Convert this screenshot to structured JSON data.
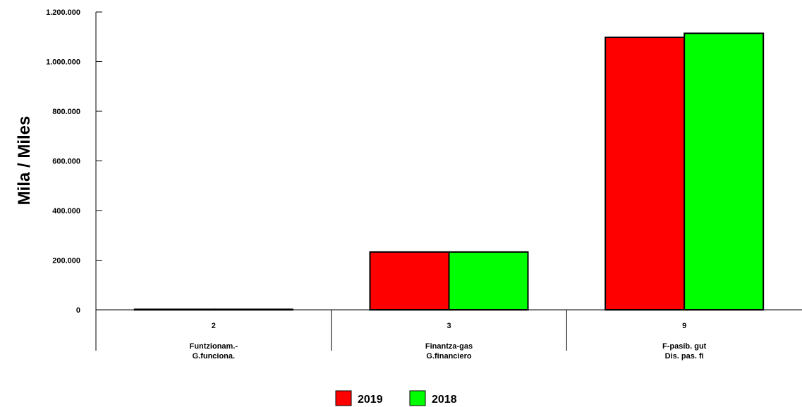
{
  "chart_data": {
    "type": "bar",
    "title": "",
    "ylabel": "Mila / Miles",
    "xlabel": "",
    "ylim": [
      0,
      1200000
    ],
    "yticks": [
      {
        "value": 0,
        "label": "0"
      },
      {
        "value": 200000,
        "label": "200.000"
      },
      {
        "value": 400000,
        "label": "400.000"
      },
      {
        "value": 600000,
        "label": "600.000"
      },
      {
        "value": 800000,
        "label": "800.000"
      },
      {
        "value": 1000000,
        "label": "1.000.000"
      },
      {
        "value": 1200000,
        "label": "1.200.000"
      }
    ],
    "categories": [
      {
        "code": "2",
        "label_line1": "Funtzionam.-",
        "label_line2": "G.funciona."
      },
      {
        "code": "3",
        "label_line1": "Finantza-gas",
        "label_line2": "G.financiero"
      },
      {
        "code": "9",
        "label_line1": "F-pasib. gut",
        "label_line2": "Dis. pas. fi"
      }
    ],
    "series": [
      {
        "name": "2019",
        "color": "#ff0000",
        "values": [
          2000,
          233000,
          1098000
        ]
      },
      {
        "name": "2018",
        "color": "#00ff00",
        "values": [
          2000,
          233000,
          1114000
        ]
      }
    ],
    "legend_position": "bottom",
    "grid": false
  }
}
